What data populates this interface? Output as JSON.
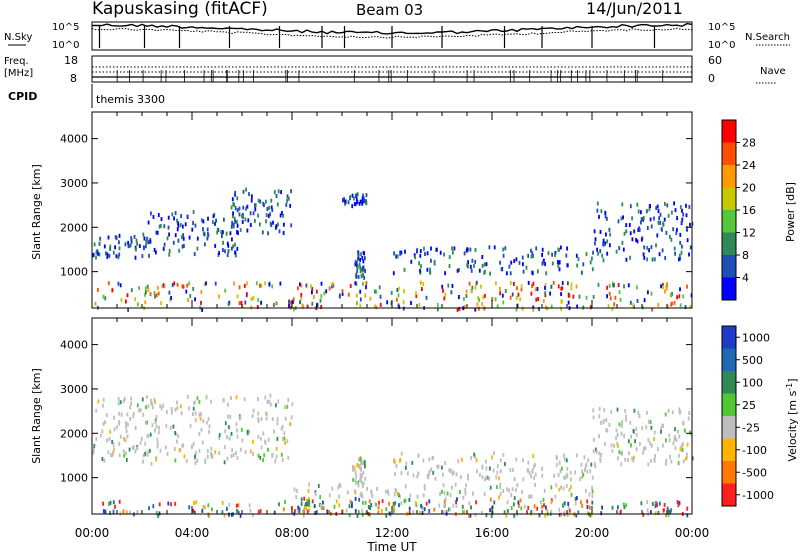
{
  "header": {
    "station": "Kapuskasing (fitACF)",
    "beam": "Beam 03",
    "date": "14/Jun/2011"
  },
  "sky_panel": {
    "left_label": "N.Sky",
    "right_label": "N.Search",
    "scale_top": "10^5",
    "scale_bottom": "10^0"
  },
  "freq_panel": {
    "left_label": "Freq.",
    "unit": "[MHz]",
    "left_ticks": [
      "18",
      "8"
    ],
    "right_label": "Nave",
    "right_ticks": [
      "60",
      "0"
    ]
  },
  "cpid": {
    "label": "CPID",
    "program": "themis 3300"
  },
  "colors": {
    "power_scale": [
      "#0000ff",
      "#1e4fb4",
      "#2e8b57",
      "#57c73a",
      "#c8c800",
      "#ff9900",
      "#ff5000",
      "#ff0000"
    ],
    "velocity_scale": [
      "#1e3cc8",
      "#1e69b4",
      "#2e8b57",
      "#4fc832",
      "#bebebe",
      "#ffb400",
      "#ff7800",
      "#ff1e1e"
    ]
  },
  "chart_data": [
    {
      "type": "heatmap",
      "title": "",
      "xlabel": "",
      "ylabel": "Slant Range [km]",
      "x_ticks": [
        "00:00",
        "04:00",
        "08:00",
        "12:00",
        "16:00",
        "20:00",
        "00:00"
      ],
      "x_range_hours": [
        0,
        24
      ],
      "y_ticks": [
        1000,
        2000,
        3000,
        4000
      ],
      "ylim": [
        180,
        4600
      ],
      "colorbar": {
        "label": "Power [dB]",
        "ticks": [
          4,
          8,
          12,
          16,
          20,
          24,
          28
        ],
        "range": [
          0,
          32
        ]
      },
      "echo_regions": [
        {
          "hours": [
            0.0,
            2.2
          ],
          "range_km": [
            1350,
            1900
          ],
          "dominant": "3-8 dB"
        },
        {
          "hours": [
            2.2,
            6.0
          ],
          "range_km": [
            1400,
            2400
          ],
          "dominant": "3-8 dB"
        },
        {
          "hours": [
            5.5,
            8.0
          ],
          "range_km": [
            1900,
            2900
          ],
          "dominant": "4-16 dB"
        },
        {
          "hours": [
            10.0,
            11.0
          ],
          "range_km": [
            2500,
            2800
          ],
          "dominant": "3-8 dB"
        },
        {
          "hours": [
            10.5,
            10.9
          ],
          "range_km": [
            900,
            1500
          ],
          "dominant": "4-12 dB"
        },
        {
          "hours": [
            12.0,
            20.0
          ],
          "range_km": [
            1000,
            1600
          ],
          "dominant": "3-6 dB"
        },
        {
          "hours": [
            20.0,
            24.0
          ],
          "range_km": [
            1300,
            2600
          ],
          "dominant": "3-8 dB"
        },
        {
          "hours": [
            0.0,
            24.0
          ],
          "range_km": [
            180,
            800
          ],
          "dominant": "mixed 4-30 dB"
        }
      ]
    },
    {
      "type": "heatmap",
      "title": "",
      "xlabel": "Time UT",
      "ylabel": "Slant Range [km]",
      "x_ticks": [
        "00:00",
        "04:00",
        "08:00",
        "12:00",
        "16:00",
        "20:00",
        "00:00"
      ],
      "x_range_hours": [
        0,
        24
      ],
      "y_ticks": [
        1000,
        2000,
        3000,
        4000
      ],
      "ylim": [
        180,
        4600
      ],
      "colorbar": {
        "label": "Velocity [m s^-1]",
        "ticks": [
          1000,
          500,
          100,
          25,
          -25,
          -100,
          -500,
          -1000
        ]
      },
      "echo_regions": [
        {
          "hours": [
            0.0,
            8.0
          ],
          "range_km": [
            1350,
            2900
          ],
          "dominant": "-25 to 25"
        },
        {
          "hours": [
            10.4,
            10.9
          ],
          "range_km": [
            900,
            1500
          ],
          "dominant": "25 to 500"
        },
        {
          "hours": [
            12.0,
            20.0
          ],
          "range_km": [
            1000,
            1600
          ],
          "dominant": "-25 to 25"
        },
        {
          "hours": [
            20.0,
            24.0
          ],
          "range_km": [
            1300,
            2600
          ],
          "dominant": "-100 to 25"
        },
        {
          "hours": [
            8.0,
            20.0
          ],
          "range_km": [
            180,
            900
          ],
          "dominant": "25 to 500"
        },
        {
          "hours": [
            0.0,
            24.0
          ],
          "range_km": [
            180,
            500
          ],
          "dominant": "mixed -1000 to 1000"
        }
      ]
    }
  ]
}
